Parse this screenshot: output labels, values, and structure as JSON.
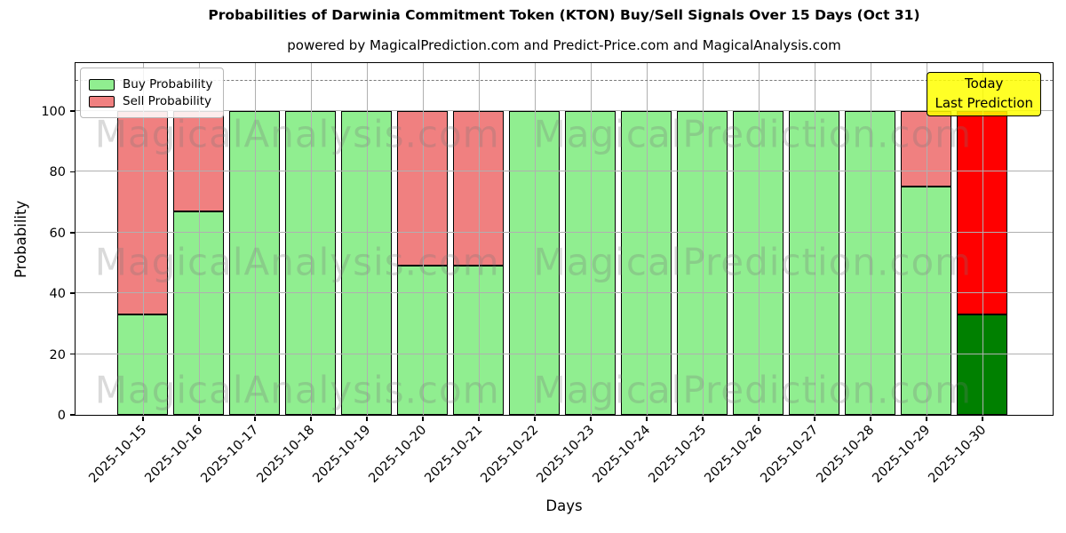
{
  "title": "Probabilities of Darwinia Commitment Token (KTON) Buy/Sell Signals Over 15 Days (Oct 31)",
  "subtitle": "powered by MagicalPrediction.com and Predict-Price.com and MagicalAnalysis.com",
  "legend": {
    "items": [
      {
        "label": "Buy Probability",
        "color": "#90EE90"
      },
      {
        "label": "Sell Probability",
        "color": "#F08080"
      }
    ]
  },
  "annotation_box": {
    "line1": "Today",
    "line2": "Last Prediction",
    "bg_color": "#FFFF00"
  },
  "watermarks": {
    "left": "MagicalAnalysis.com",
    "right": "MagicalPrediction.com"
  },
  "chart_data": {
    "type": "bar",
    "stacked": true,
    "title": "Probabilities of Darwinia Commitment Token (KTON) Buy/Sell Signals Over 15 Days (Oct 31)",
    "xlabel": "Days",
    "ylabel": "Probability",
    "ylim": [
      0,
      115.75
    ],
    "yticks": [
      0,
      20,
      40,
      60,
      80,
      100
    ],
    "grid": true,
    "legend_position": "upper left",
    "dashed_line_y": 110,
    "categories": [
      "2025-10-15",
      "2025-10-16",
      "2025-10-17",
      "2025-10-18",
      "2025-10-19",
      "2025-10-20",
      "2025-10-21",
      "2025-10-22",
      "2025-10-23",
      "2025-10-24",
      "2025-10-25",
      "2025-10-26",
      "2025-10-27",
      "2025-10-28",
      "2025-10-29",
      "2025-10-30"
    ],
    "series": [
      {
        "name": "Buy Probability",
        "color": "#90EE90",
        "values": [
          33,
          67,
          100,
          100,
          100,
          49,
          49,
          100,
          100,
          100,
          100,
          100,
          100,
          100,
          75,
          33
        ]
      },
      {
        "name": "Sell Probability",
        "color": "#F08080",
        "values": [
          67,
          33,
          0,
          0,
          0,
          51,
          51,
          0,
          0,
          0,
          0,
          0,
          0,
          0,
          25,
          67
        ]
      }
    ],
    "today_bar": {
      "index": 15,
      "buy_color": "#008000",
      "sell_color": "#FF0000"
    },
    "bar_edge_color": "#000000",
    "grid_color": "#b0b0b0"
  }
}
